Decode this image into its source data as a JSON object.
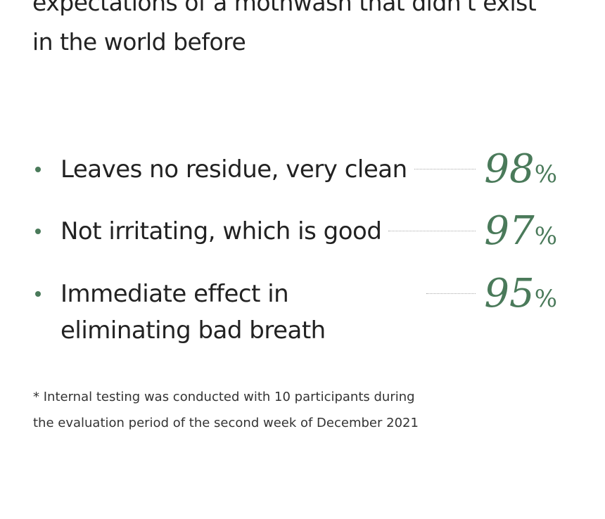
{
  "heading": [
    "expectations of a mothwash that didn't exist",
    "in the world before"
  ],
  "items": [
    {
      "label": "Leaves no residue, very clean",
      "value": 98,
      "unit": "%"
    },
    {
      "label": "Not irritating, which is good",
      "value": 97,
      "unit": "%"
    },
    {
      "label": "Immediate effect in eliminating bad breath",
      "value": 95,
      "unit": "%"
    }
  ],
  "footnote": [
    "* Internal testing was conducted with 10 participants during",
    "the evaluation period of the second week of December 2021"
  ]
}
